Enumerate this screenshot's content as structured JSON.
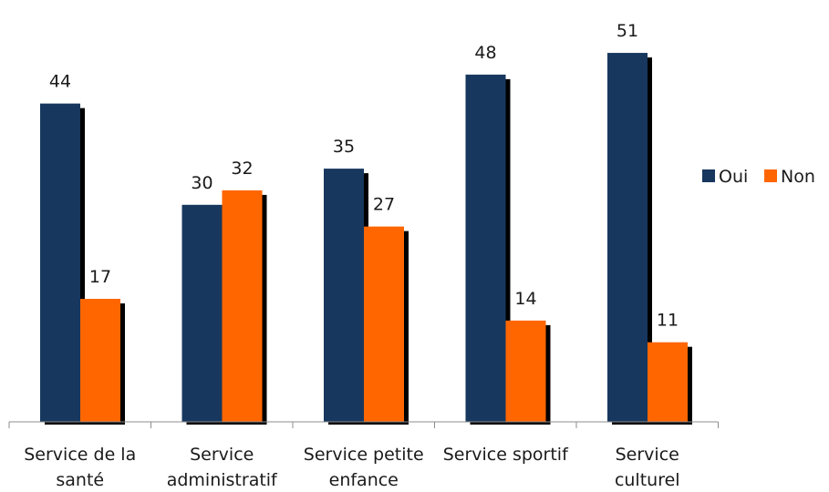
{
  "chart_data": {
    "type": "bar",
    "categories": [
      [
        "Service de la",
        "santé"
      ],
      [
        "Service",
        "administratif"
      ],
      [
        "Service petite",
        "enfance"
      ],
      [
        "Service sportif"
      ],
      [
        "Service",
        "culturel"
      ]
    ],
    "series": [
      {
        "name": "Oui",
        "values": [
          44,
          30,
          35,
          48,
          51
        ],
        "color": "#17375E"
      },
      {
        "name": "Non",
        "values": [
          17,
          32,
          27,
          14,
          11
        ],
        "color": "#FF6600"
      }
    ],
    "title": "",
    "xlabel": "",
    "ylabel": "",
    "ylim": [
      0,
      55
    ],
    "grid": false,
    "legend": "right",
    "data_labels": true
  }
}
